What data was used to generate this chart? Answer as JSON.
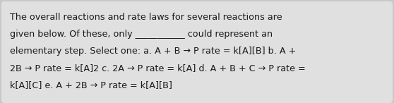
{
  "bg_color": "#c8c8c8",
  "box_color": "#e0e0e0",
  "text_lines": [
    "The overall reactions and rate laws for several reactions are",
    "given below. Of these, only ___________ could represent an",
    "elementary step. Select one: a. A + B → P rate = k[A][B] b. A +",
    "2B → P rate = k[A]2 c. 2A → P rate = k[A] d. A + B + C → P rate =",
    "k[A][C] e. A + 2B → P rate = k[A][B]"
  ],
  "font_size": 9.2,
  "text_color": "#1a1a1a",
  "font_family": "DejaVu Sans",
  "fig_width": 5.58,
  "fig_height": 1.46,
  "dpi": 100
}
